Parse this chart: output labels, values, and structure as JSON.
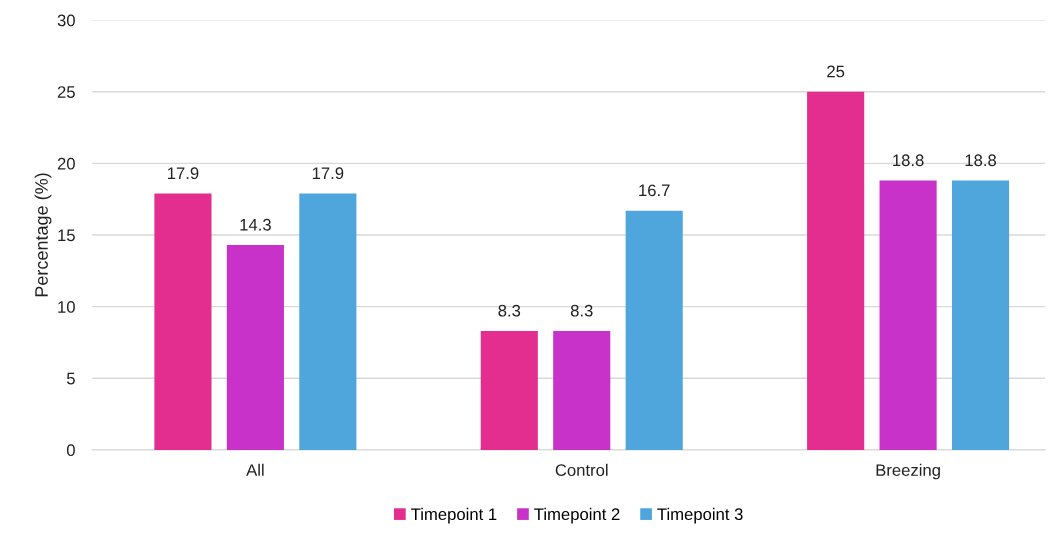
{
  "chart_data": {
    "type": "bar",
    "ylabel": "Percentage (%)",
    "categories": [
      "All",
      "Control",
      "Breezing"
    ],
    "series": [
      {
        "name": "Timepoint 1",
        "color": "#e32d8f",
        "values": [
          17.9,
          8.3,
          25
        ]
      },
      {
        "name": "Timepoint 2",
        "color": "#c832c8",
        "values": [
          14.3,
          8.3,
          18.8
        ]
      },
      {
        "name": "Timepoint 3",
        "color": "#4fa6dc",
        "values": [
          17.9,
          16.7,
          18.8
        ]
      }
    ],
    "ylim": [
      0,
      30
    ],
    "yticks": [
      0,
      5,
      10,
      15,
      20,
      25,
      30
    ],
    "grid": "y",
    "legend": "bottom",
    "data_labels": true
  }
}
